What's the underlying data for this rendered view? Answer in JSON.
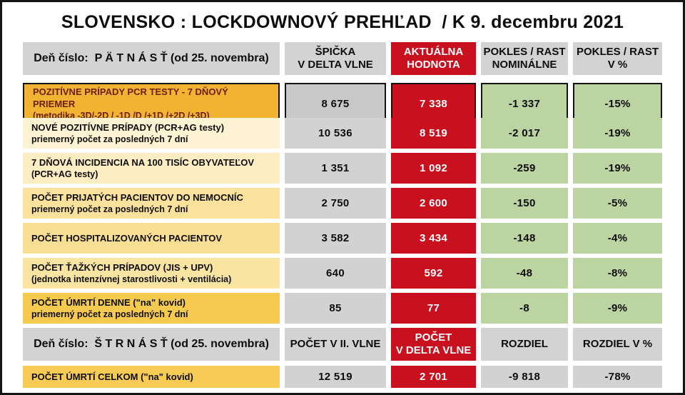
{
  "chart_data": {
    "type": "table",
    "title": "SLOVENSKO : LOCKDOWNOVÝ PREHĽAD  / K 9. decembru 2021",
    "sections": [
      {
        "day_header": "Deň číslo:  P Ä T N Á S Ť (od 25. novembra)",
        "columns": [
          "ŠPIČKA\nV DELTA VLNE",
          "AKTUÁLNA\nHODNOTA",
          "POKLES / RAST\nNOMINÁLNE",
          "POKLES / RAST\nV %"
        ],
        "rows": [
          {
            "label": "POZITÍVNE PRÍPADY PCR TESTY - 7 DŇOVÝ PRIEMER",
            "sublabel": "(metodika -3D/-2D / -1D /D /+1D /+2D /+3D)",
            "values": [
              "8 675",
              "7 338",
              "-1 337",
              "-15%"
            ],
            "bg": "#f2b232",
            "label_color": "#6b2008",
            "highlighted": true
          },
          {
            "label": "NOVÉ POZITÍVNE PRÍPADY (PCR+AG testy)",
            "sublabel": "priemerný počet za posledných 7 dní",
            "values": [
              "10 536",
              "8 519",
              "-2 017",
              "-19%"
            ],
            "bg": "#fdf2d2"
          },
          {
            "label": "7 DŇOVÁ INCIDENCIA NA 100 TISÍC OBYVATEĽOV",
            "sublabel": "(PCR+AG testy)",
            "values": [
              "1 351",
              "1 092",
              "-259",
              "-19%"
            ],
            "bg": "#fcedc3"
          },
          {
            "label": "POČET PRIJATÝCH PACIENTOV DO NEMOCNÍC",
            "sublabel": "priemerný počet za posledných 7 dní",
            "values": [
              "2 750",
              "2 600",
              "-150",
              "-5%"
            ],
            "bg": "#fbe29c"
          },
          {
            "label": "POČET HOSPITALIZOVANÝCH PACIENTOV",
            "sublabel": "",
            "values": [
              "3 582",
              "3 434",
              "-148",
              "-4%"
            ],
            "bg": "#f9df94"
          },
          {
            "label": "POČET ŤAŽKÝCH PRÍPADOV (JIS + UPV)",
            "sublabel": "(jednotka intenzívnej starostlivosti + ventilácia)",
            "values": [
              "640",
              "592",
              "-48",
              "-8%"
            ],
            "bg": "#fae4a2"
          },
          {
            "label": "POČET ÚMRTÍ DENNE (\"na\" kovid)",
            "sublabel": "priemerný počet za posledných 7 dní",
            "values": [
              "85",
              "77",
              "-8",
              "-9%"
            ],
            "bg": "#f6c94f"
          }
        ]
      },
      {
        "day_header": "Deň číslo:  Š T R N Á S Ť (od 25. novembra)",
        "columns": [
          "POČET V II. VLNE",
          "POČET\nV DELTA VLNE",
          "ROZDIEL",
          "ROZDIEL V %"
        ],
        "rows": [
          {
            "label": "POČET ÚMRTÍ CELKOM  (\"na\" kovid)",
            "sublabel": "",
            "values": [
              "12 519",
              "2 701",
              "-9 818",
              "-78%"
            ],
            "bg": "#f8cb55"
          }
        ]
      }
    ]
  },
  "palette": {
    "red": "#c8101e",
    "green": "#bcd3a2",
    "gray_header": "#d3d3d3",
    "gray_cell": "#d2d2d2",
    "highlight_orange": "#f2b232",
    "border_black": "#141414"
  }
}
